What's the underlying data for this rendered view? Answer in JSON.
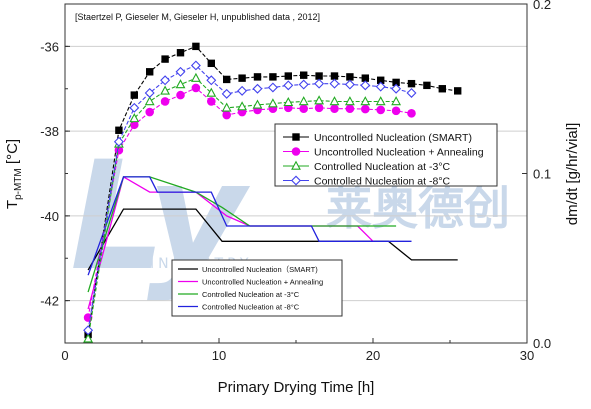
{
  "chart_data": {
    "type": "line",
    "source_note": "[Staertzel P, Gieseler M, Gieseler H, unpublished data , 2012]",
    "xlabel": "Primary Drying Time [h]",
    "ylabel_main": "T",
    "ylabel_sub": "p-MTM",
    "ylabel_unit": " [°C]",
    "y2label": "dm/dt [g/hr/vial]",
    "xlim": [
      0,
      30
    ],
    "ylim": [
      -43,
      -35
    ],
    "y2lim": [
      0.0,
      0.2
    ],
    "x_ticks": [
      "0",
      "10",
      "20",
      "30"
    ],
    "y_ticks": [
      "-36",
      "-38",
      "-40",
      "-42"
    ],
    "y2_ticks": [
      "0.0",
      "0.1",
      "0.2"
    ],
    "watermark": {
      "latin": "Ly",
      "cjk": "莱奥德创",
      "sub": "INDUSTRY"
    },
    "temperature_series": [
      {
        "name": "Uncontrolled Nucleation (SMART)",
        "color": "#000000",
        "marker": "square-filled",
        "x": [
          1.5,
          3.5,
          4.5,
          5.5,
          6.5,
          7.5,
          8.5,
          9.5,
          10.5,
          11.5,
          12.5,
          13.5,
          14.5,
          15.5,
          16.5,
          17.5,
          18.5,
          19.5,
          20.5,
          21.5,
          22.5,
          23.5,
          24.5,
          25.5
        ],
        "y": [
          -42.8,
          -37.98,
          -37.15,
          -36.6,
          -36.3,
          -36.15,
          -36.0,
          -36.4,
          -36.78,
          -36.75,
          -36.72,
          -36.72,
          -36.7,
          -36.68,
          -36.7,
          -36.7,
          -36.72,
          -36.75,
          -36.8,
          -36.85,
          -36.88,
          -36.92,
          -37.0,
          -37.05
        ]
      },
      {
        "name": "Uncontrolled Nucleation + Annealing",
        "color": "#ee00ee",
        "marker": "circle-filled",
        "x": [
          1.5,
          3.5,
          4.5,
          5.5,
          6.5,
          7.5,
          8.5,
          9.5,
          10.5,
          11.5,
          12.5,
          13.5,
          14.5,
          15.5,
          16.5,
          17.5,
          18.5,
          19.5,
          20.5,
          21.5,
          22.5
        ],
        "y": [
          -42.4,
          -38.45,
          -37.85,
          -37.55,
          -37.3,
          -37.15,
          -36.98,
          -37.3,
          -37.62,
          -37.55,
          -37.5,
          -37.47,
          -37.45,
          -37.47,
          -37.45,
          -37.47,
          -37.47,
          -37.48,
          -37.5,
          -37.52,
          -37.58
        ]
      },
      {
        "name": "Controlled Nucleation at -3°C",
        "color": "#22aa22",
        "marker": "triangle-open",
        "x": [
          1.5,
          3.5,
          4.5,
          5.5,
          6.5,
          7.5,
          8.5,
          9.5,
          10.5,
          11.5,
          12.5,
          13.5,
          14.5,
          15.5,
          16.5,
          17.5,
          18.5,
          19.5,
          20.5,
          21.5
        ],
        "y": [
          -42.9,
          -38.3,
          -37.7,
          -37.3,
          -37.05,
          -36.9,
          -36.75,
          -37.1,
          -37.45,
          -37.42,
          -37.38,
          -37.35,
          -37.32,
          -37.3,
          -37.28,
          -37.3,
          -37.3,
          -37.3,
          -37.3,
          -37.3
        ]
      },
      {
        "name": "Controlled Nucleation at -8°C",
        "color": "#4444ee",
        "marker": "diamond-open",
        "x": [
          1.5,
          3.5,
          4.5,
          5.5,
          6.5,
          7.5,
          8.5,
          9.5,
          10.5,
          11.5,
          12.5,
          13.5,
          14.5,
          15.5,
          16.5,
          17.5,
          18.5,
          19.5,
          20.5,
          21.5,
          22.5
        ],
        "y": [
          -42.7,
          -38.25,
          -37.45,
          -37.1,
          -36.8,
          -36.6,
          -36.45,
          -36.8,
          -37.12,
          -37.05,
          -37.0,
          -36.97,
          -36.92,
          -36.9,
          -36.88,
          -36.88,
          -36.9,
          -36.92,
          -36.95,
          -37.0,
          -37.1
        ]
      }
    ],
    "rate_series": [
      {
        "name": "Uncontrolled Nucleation（SMART)",
        "color": "#000000",
        "x": [
          1.5,
          3.8,
          8.5,
          10.2,
          21.0,
          22.5,
          25.5
        ],
        "y": [
          0.043,
          0.079,
          0.079,
          0.06,
          0.06,
          0.049,
          0.049
        ]
      },
      {
        "name": "Uncontrolled Nucleation + Annealing",
        "color": "#ee00ee",
        "x": [
          1.5,
          3.8,
          5.5,
          8.5,
          10.5,
          12.0,
          19.0,
          20.0
        ],
        "y": [
          0.02,
          0.098,
          0.089,
          0.089,
          0.075,
          0.069,
          0.069,
          0.06
        ]
      },
      {
        "name": "Controlled Nucleation at -3°C",
        "color": "#22aa22",
        "x": [
          1.5,
          3.8,
          5.5,
          8.5,
          10.2,
          12.0,
          21.5
        ],
        "y": [
          0.03,
          0.098,
          0.098,
          0.089,
          0.08,
          0.069,
          0.069
        ]
      },
      {
        "name": "Controlled Nucleation at -8°C",
        "color": "#2222dd",
        "x": [
          1.5,
          3.8,
          5.5,
          6.0,
          9.5,
          10.5,
          16.0,
          16.5,
          22.5
        ],
        "y": [
          0.04,
          0.098,
          0.098,
          0.089,
          0.089,
          0.069,
          0.069,
          0.06,
          0.06
        ]
      }
    ],
    "grid": true
  }
}
